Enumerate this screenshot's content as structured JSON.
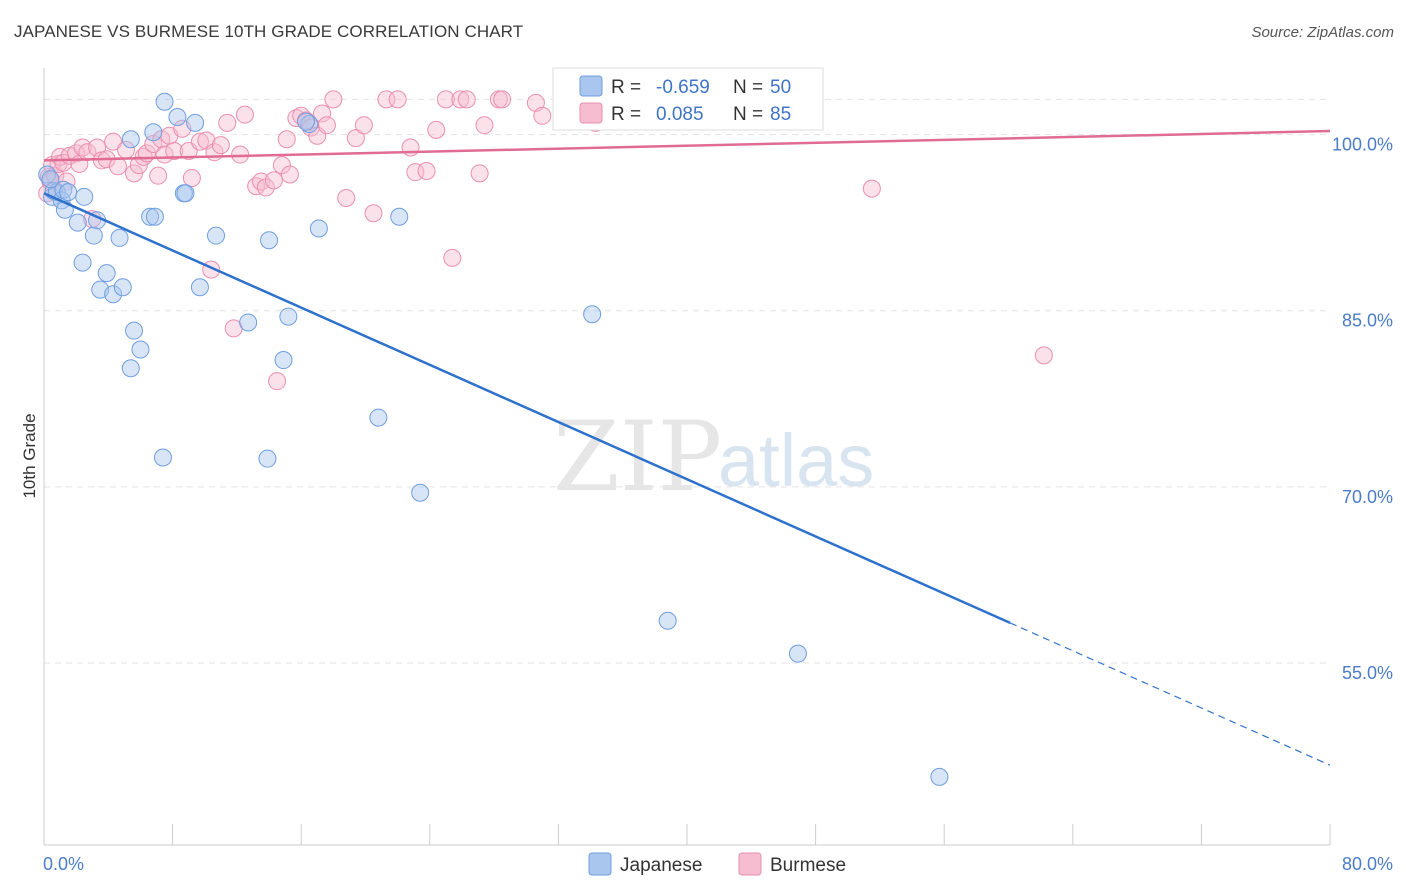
{
  "title": "JAPANESE VS BURMESE 10TH GRADE CORRELATION CHART",
  "source": "Source: ZipAtlas.com",
  "watermark": {
    "zip": "ZIP",
    "atlas": "atlas"
  },
  "colors": {
    "japanese": "#a8c6ee",
    "japanese_stroke": "#6f9ee0",
    "japanese_line": "#2f72cc",
    "burmese": "#f6bcd0",
    "burmese_stroke": "#ea8fb0",
    "burmese_line": "#e06b93"
  },
  "legend_top": {
    "rows": [
      {
        "r_label": "R = ",
        "r_value": "-0.659",
        "n_label": "N = ",
        "n_value": "50"
      },
      {
        "r_label": "R = ",
        "r_value": "0.085",
        "n_label": "N = ",
        "n_value": "85"
      }
    ]
  },
  "legend_bottom": [
    "Japanese",
    "Burmese"
  ],
  "chart_data": {
    "type": "scatter",
    "title": "JAPANESE VS BURMESE 10TH GRADE CORRELATION CHART",
    "xlabel": "",
    "ylabel": "10th Grade",
    "xlim": [
      0,
      80
    ],
    "ylim": [
      39.5,
      105.5
    ],
    "x_tick_labels": [
      "0.0%",
      "80.0%"
    ],
    "y_ticks": [
      55,
      70,
      85,
      100
    ],
    "y_tick_labels": [
      "55.0%",
      "70.0%",
      "85.0%",
      "100.0%"
    ],
    "grid": true,
    "legend_position": "top-center",
    "series": [
      {
        "name": "Japanese",
        "r": -0.659,
        "n": 50,
        "trend": {
          "x0": 0,
          "y0": 95.0,
          "x1": 80,
          "y1": 46.3,
          "solid_until_x": 60.1
        },
        "points": [
          [
            0.2,
            96.6
          ],
          [
            0.5,
            94.7
          ],
          [
            0.6,
            95.2
          ],
          [
            0.8,
            95.1
          ],
          [
            1.1,
            94.4
          ],
          [
            1.2,
            95.3
          ],
          [
            1.3,
            93.6
          ],
          [
            1.5,
            95.1
          ],
          [
            2.1,
            92.5
          ],
          [
            2.4,
            89.1
          ],
          [
            2.5,
            94.7
          ],
          [
            3.1,
            91.4
          ],
          [
            3.3,
            92.7
          ],
          [
            3.5,
            86.8
          ],
          [
            3.9,
            88.2
          ],
          [
            4.3,
            86.4
          ],
          [
            4.7,
            91.2
          ],
          [
            4.9,
            87.0
          ],
          [
            5.4,
            80.1
          ],
          [
            5.4,
            99.6
          ],
          [
            5.6,
            83.3
          ],
          [
            6.0,
            81.7
          ],
          [
            6.6,
            93.0
          ],
          [
            6.8,
            100.2
          ],
          [
            6.9,
            93.0
          ],
          [
            7.4,
            72.5
          ],
          [
            7.5,
            102.8
          ],
          [
            8.3,
            101.5
          ],
          [
            8.7,
            95.0
          ],
          [
            8.8,
            95.0
          ],
          [
            9.4,
            101.0
          ],
          [
            9.7,
            87.0
          ],
          [
            10.7,
            91.4
          ],
          [
            12.7,
            84.0
          ],
          [
            13.9,
            72.4
          ],
          [
            14.0,
            91.0
          ],
          [
            14.9,
            80.8
          ],
          [
            15.2,
            84.5
          ],
          [
            17.1,
            92.0
          ],
          [
            16.5,
            100.9
          ],
          [
            16.3,
            101.1
          ],
          [
            20.8,
            75.9
          ],
          [
            22.1,
            93.0
          ],
          [
            23.4,
            69.5
          ],
          [
            34.1,
            84.7
          ],
          [
            38.8,
            58.6
          ],
          [
            38.9,
            102.5
          ],
          [
            46.9,
            55.8
          ],
          [
            55.7,
            45.3
          ],
          [
            0.4,
            96.2
          ]
        ]
      },
      {
        "name": "Burmese",
        "r": 0.085,
        "n": 85,
        "trend": {
          "x0": 0,
          "y0": 97.8,
          "x1": 80,
          "y1": 100.3
        },
        "points": [
          [
            0.2,
            95.0
          ],
          [
            0.3,
            96.4
          ],
          [
            0.4,
            96.0
          ],
          [
            0.5,
            97.4
          ],
          [
            0.7,
            96.5
          ],
          [
            0.9,
            97.5
          ],
          [
            1.0,
            98.1
          ],
          [
            1.2,
            97.6
          ],
          [
            1.4,
            96.0
          ],
          [
            1.6,
            98.2
          ],
          [
            2.0,
            98.4
          ],
          [
            2.2,
            97.5
          ],
          [
            2.4,
            98.9
          ],
          [
            2.7,
            98.5
          ],
          [
            3.0,
            92.8
          ],
          [
            3.3,
            98.9
          ],
          [
            3.6,
            97.8
          ],
          [
            3.9,
            97.9
          ],
          [
            4.3,
            99.4
          ],
          [
            4.6,
            97.3
          ],
          [
            5.1,
            98.7
          ],
          [
            5.6,
            96.7
          ],
          [
            5.9,
            97.4
          ],
          [
            6.2,
            98.1
          ],
          [
            6.4,
            98.4
          ],
          [
            6.8,
            99.2
          ],
          [
            7.1,
            96.5
          ],
          [
            7.3,
            99.6
          ],
          [
            7.5,
            98.3
          ],
          [
            7.8,
            99.9
          ],
          [
            8.1,
            98.6
          ],
          [
            8.6,
            100.5
          ],
          [
            9.0,
            98.6
          ],
          [
            9.2,
            96.3
          ],
          [
            9.7,
            99.4
          ],
          [
            10.1,
            99.5
          ],
          [
            10.4,
            88.5
          ],
          [
            10.6,
            98.5
          ],
          [
            11.0,
            99.1
          ],
          [
            11.4,
            101.0
          ],
          [
            11.8,
            83.5
          ],
          [
            12.2,
            98.3
          ],
          [
            12.5,
            101.7
          ],
          [
            13.2,
            95.6
          ],
          [
            13.5,
            96.0
          ],
          [
            13.8,
            95.5
          ],
          [
            14.3,
            96.1
          ],
          [
            14.5,
            79.0
          ],
          [
            14.8,
            97.4
          ],
          [
            15.1,
            99.6
          ],
          [
            15.3,
            96.6
          ],
          [
            15.7,
            101.4
          ],
          [
            16.0,
            101.6
          ],
          [
            16.3,
            101.2
          ],
          [
            16.6,
            100.6
          ],
          [
            17.0,
            99.9
          ],
          [
            17.3,
            101.8
          ],
          [
            17.6,
            100.8
          ],
          [
            18.0,
            103.0
          ],
          [
            18.8,
            94.6
          ],
          [
            19.4,
            99.7
          ],
          [
            19.9,
            100.8
          ],
          [
            20.5,
            93.3
          ],
          [
            21.3,
            103.0
          ],
          [
            22.0,
            103.0
          ],
          [
            22.8,
            98.9
          ],
          [
            23.1,
            96.8
          ],
          [
            23.8,
            96.9
          ],
          [
            24.4,
            100.4
          ],
          [
            25.0,
            103.0
          ],
          [
            25.4,
            89.5
          ],
          [
            25.9,
            103.0
          ],
          [
            26.3,
            103.0
          ],
          [
            27.1,
            96.7
          ],
          [
            27.4,
            100.8
          ],
          [
            28.3,
            103.0
          ],
          [
            28.5,
            103.0
          ],
          [
            30.6,
            102.7
          ],
          [
            31.0,
            101.6
          ],
          [
            32.4,
            103.0
          ],
          [
            33.2,
            103.0
          ],
          [
            34.3,
            101.0
          ],
          [
            36.2,
            103.0
          ],
          [
            51.5,
            95.4
          ],
          [
            62.2,
            81.2
          ]
        ]
      }
    ]
  }
}
